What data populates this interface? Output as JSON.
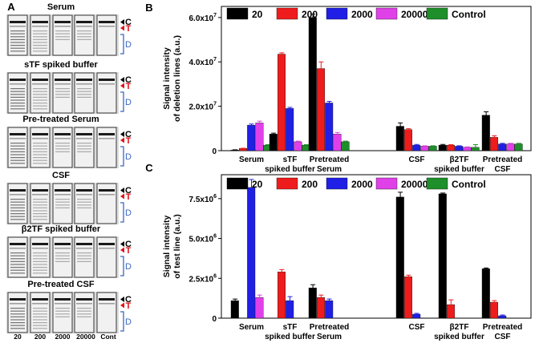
{
  "panel_a": {
    "label": "A",
    "strip_groups": [
      {
        "title": "Serum"
      },
      {
        "title": "sTF spiked buffer"
      },
      {
        "title": "Pre-treated Serum"
      },
      {
        "title": "CSF"
      },
      {
        "title": "β2TF spiked buffer"
      },
      {
        "title": "Pre-treated CSF"
      }
    ],
    "marker_labels": {
      "control": "C",
      "test": "T",
      "deletion": "D"
    },
    "lane_labels": [
      "20",
      "200",
      "2000",
      "20000",
      "Cont"
    ],
    "colors": {
      "control_marker": "#000000",
      "test_marker": "#e3121b",
      "deletion_bracket": "#3a66c4"
    }
  },
  "chart_data": [
    {
      "panel": "B",
      "type": "bar",
      "ylabel_lines": [
        "Signal intensity",
        "of deletion lines (a.u.)"
      ],
      "ylim": [
        0,
        65000000
      ],
      "yticks": [
        0,
        20000000,
        40000000,
        60000000
      ],
      "ytick_labels": [
        {
          "base": "0",
          "exp": ""
        },
        {
          "base": "2.0x10",
          "exp": "7"
        },
        {
          "base": "4.0x10",
          "exp": "7"
        },
        {
          "base": "6.0x10",
          "exp": "7"
        }
      ],
      "legend": [
        "20",
        "200",
        "2000",
        "20000",
        "Control"
      ],
      "colors": [
        "#000000",
        "#ee1c1c",
        "#1f1fe6",
        "#e040e8",
        "#1e8f2a"
      ],
      "groups": [
        {
          "label_lines": [
            "Serum"
          ],
          "values": [
            300000,
            1000000,
            11500000,
            12500000,
            2500000
          ],
          "errors": [
            100000,
            100000,
            500000,
            800000,
            200000
          ]
        },
        {
          "label_lines": [
            "sTF",
            "spiked buffer"
          ],
          "values": [
            7500000,
            43500000,
            19000000,
            4000000,
            2500000
          ],
          "errors": [
            400000,
            600000,
            500000,
            300000,
            200000
          ]
        },
        {
          "label_lines": [
            "Pretreated",
            "Serum"
          ],
          "values": [
            60000000,
            37000000,
            21500000,
            7500000,
            4000000
          ],
          "errors": [
            1500000,
            3000000,
            700000,
            700000,
            300000
          ]
        },
        {
          "label_lines": [
            "CSF"
          ],
          "values": [
            11000000,
            9500000,
            2500000,
            2000000,
            2000000
          ],
          "errors": [
            1500000,
            400000,
            300000,
            200000,
            200000
          ]
        },
        {
          "label_lines": [
            "β2TF",
            "spiked buffer"
          ],
          "values": [
            2500000,
            2500000,
            2000000,
            1500000,
            1500000
          ],
          "errors": [
            300000,
            200000,
            200000,
            200000,
            1200000
          ]
        },
        {
          "label_lines": [
            "Pretreated",
            "CSF"
          ],
          "values": [
            16000000,
            6000000,
            3000000,
            3000000,
            3000000
          ],
          "errors": [
            1500000,
            700000,
            300000,
            300000,
            300000
          ]
        }
      ]
    },
    {
      "panel": "C",
      "type": "bar",
      "ylabel_lines": [
        "Signal intensity",
        "of test line (a.u.)"
      ],
      "ylim": [
        0,
        9000000
      ],
      "yticks": [
        0,
        2500000,
        5000000,
        7500000
      ],
      "ytick_labels": [
        {
          "base": "0",
          "exp": ""
        },
        {
          "base": "2.5x10",
          "exp": "6"
        },
        {
          "base": "5.0x10",
          "exp": "6"
        },
        {
          "base": "7.5x10",
          "exp": "6"
        }
      ],
      "legend": [
        "20",
        "200",
        "2000",
        "20000",
        "Control"
      ],
      "colors": [
        "#000000",
        "#ee1c1c",
        "#1f1fe6",
        "#e040e8",
        "#1e8f2a"
      ],
      "groups": [
        {
          "label_lines": [
            "Serum"
          ],
          "values": [
            1100000,
            null,
            8200000,
            1300000,
            null
          ],
          "errors": [
            100000,
            0,
            500000,
            150000,
            0
          ]
        },
        {
          "label_lines": [
            "sTF",
            "spiked buffer"
          ],
          "values": [
            null,
            2900000,
            1100000,
            null,
            null
          ],
          "errors": [
            0,
            150000,
            250000,
            0,
            0
          ]
        },
        {
          "label_lines": [
            "Pretreated",
            "Serum"
          ],
          "values": [
            1900000,
            1300000,
            1100000,
            null,
            null
          ],
          "errors": [
            200000,
            150000,
            100000,
            0,
            0
          ]
        },
        {
          "label_lines": [
            "CSF"
          ],
          "values": [
            7600000,
            2600000,
            250000,
            null,
            null
          ],
          "errors": [
            300000,
            100000,
            50000,
            0,
            0
          ]
        },
        {
          "label_lines": [
            "β2TF",
            "spiked buffer"
          ],
          "values": [
            7800000,
            850000,
            null,
            null,
            null
          ],
          "errors": [
            50000,
            300000,
            0,
            0,
            0
          ]
        },
        {
          "label_lines": [
            "Pretreated",
            "CSF"
          ],
          "values": [
            3100000,
            1000000,
            150000,
            null,
            null
          ],
          "errors": [
            50000,
            100000,
            50000,
            0,
            0
          ]
        }
      ]
    }
  ]
}
